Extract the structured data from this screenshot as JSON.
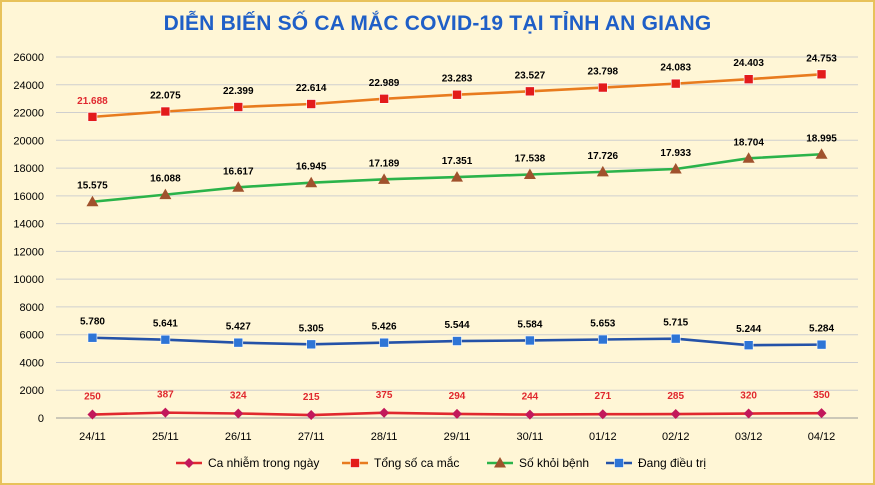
{
  "chart_data": {
    "type": "line",
    "title": "DIỄN BIẾN SỐ CA MẮC COVID-19 TẠI TỈNH AN GIANG",
    "categories": [
      "24/11",
      "25/11",
      "26/11",
      "27/11",
      "28/11",
      "29/11",
      "30/11",
      "01/12",
      "02/12",
      "03/12",
      "04/12"
    ],
    "ylim": [
      0,
      26000
    ],
    "yticks": [
      "0",
      "2000",
      "4000",
      "6000",
      "8000",
      "10000",
      "12000",
      "14000",
      "16000",
      "18000",
      "20000",
      "22000",
      "24000",
      "26000"
    ],
    "grid": true,
    "legend": "bottom",
    "series": [
      {
        "name": "Ca nhiễm trong ngày",
        "color": "#e0282e",
        "marker": "diamond",
        "markerColor": "#c2185b",
        "lineColor": "#e0282e",
        "labelColor": "#e0282e",
        "values": [
          250,
          387,
          324,
          215,
          375,
          294,
          244,
          271,
          285,
          320,
          350
        ],
        "labels": [
          "250",
          "387",
          "324",
          "215",
          "375",
          "294",
          "244",
          "271",
          "285",
          "320",
          "350"
        ]
      },
      {
        "name": "Tổng số ca mắc",
        "color": "#e87b1e",
        "marker": "square",
        "markerColor": "#e31b1b",
        "lineColor": "#e87b1e",
        "labelColor": "#000000",
        "firstLabelColor": "#e0282e",
        "values": [
          21688,
          22075,
          22399,
          22614,
          22989,
          23283,
          23527,
          23798,
          24083,
          24403,
          24753
        ],
        "labels": [
          "21.688",
          "22.075",
          "22.399",
          "22.614",
          "22.989",
          "23.283",
          "23.527",
          "23.798",
          "24.083",
          "24.403",
          "24.753"
        ]
      },
      {
        "name": "Số khỏi bệnh",
        "color": "#2bb34a",
        "marker": "triangle",
        "markerColor": "#a0522d",
        "lineColor": "#2bb34a",
        "labelColor": "#000000",
        "values": [
          15575,
          16088,
          16617,
          16945,
          17189,
          17351,
          17538,
          17726,
          17933,
          18704,
          18995
        ],
        "labels": [
          "15.575",
          "16.088",
          "16.617",
          "16.945",
          "17.189",
          "17.351",
          "17.538",
          "17.726",
          "17.933",
          "18.704",
          "18.995"
        ]
      },
      {
        "name": "Đang điều trị",
        "color": "#2452a8",
        "marker": "square",
        "markerColor": "#2e75d6",
        "lineColor": "#2452a8",
        "labelColor": "#000000",
        "values": [
          5780,
          5641,
          5427,
          5305,
          5426,
          5544,
          5584,
          5653,
          5715,
          5244,
          5284
        ],
        "labels": [
          "5.780",
          "5.641",
          "5.427",
          "5.305",
          "5.426",
          "5.544",
          "5.584",
          "5.653",
          "5.715",
          "5.244",
          "5.284"
        ]
      }
    ]
  }
}
